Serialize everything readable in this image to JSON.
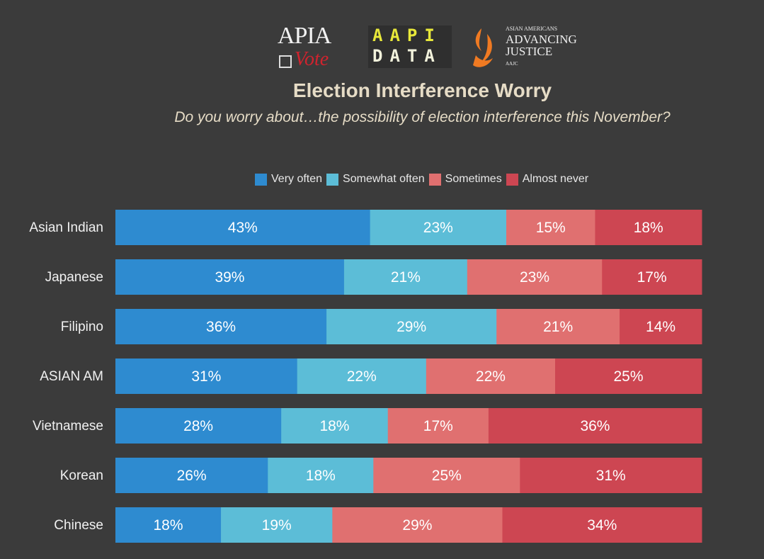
{
  "logos": {
    "apia_vote": {
      "top": "APIA",
      "bottom": "Vote"
    },
    "aapi_data": {
      "top": "AAPI",
      "bottom": "DATA"
    },
    "aajc": {
      "small": "ASIAN AMERICANS",
      "big1": "ADVANCING",
      "big2": "JUSTICE",
      "tag": "AAJC"
    }
  },
  "chart_data": {
    "type": "bar",
    "orientation": "horizontal",
    "stacked": true,
    "title": "Election Interference Worry",
    "subtitle": "Do you worry about…the possibility of election interference this November?",
    "legend_position": "top",
    "grid": false,
    "categories": [
      "Asian Indian",
      "Japanese",
      "Filipino",
      "ASIAN AM",
      "Vietnamese",
      "Korean",
      "Chinese"
    ],
    "series": [
      {
        "name": "Very often",
        "color": "#2e8bd0",
        "values": [
          43,
          39,
          36,
          31,
          28,
          26,
          18
        ]
      },
      {
        "name": "Somewhat often",
        "color": "#5cbdd7",
        "values": [
          23,
          21,
          29,
          22,
          18,
          18,
          19
        ]
      },
      {
        "name": "Sometimes",
        "color": "#e07070",
        "values": [
          15,
          23,
          21,
          22,
          17,
          25,
          29
        ]
      },
      {
        "name": "Almost never",
        "color": "#cd4652",
        "values": [
          18,
          17,
          14,
          25,
          36,
          31,
          34
        ]
      }
    ],
    "value_suffix": "%",
    "background": "#3b3b3b"
  }
}
